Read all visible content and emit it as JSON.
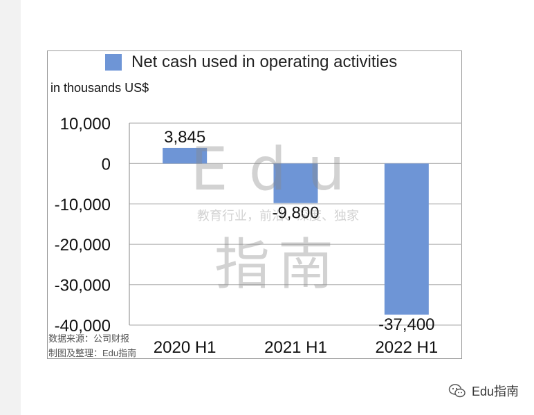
{
  "chart_data": {
    "type": "bar",
    "categories": [
      "2020 H1",
      "2021 H1",
      "2022 H1"
    ],
    "series": [
      {
        "name": "Net cash used in operating activities",
        "values": [
          3845,
          -9800,
          -37400
        ]
      }
    ],
    "data_labels": [
      "3,845",
      "-9,800",
      "-37,400"
    ],
    "ylabel": "in thousands US$",
    "yticks": [
      "10,000",
      "0",
      "-10,000",
      "-20,000",
      "-30,000",
      "-40,000"
    ],
    "ylim": [
      -40000,
      10000
    ],
    "grid": true,
    "legend_position": "top",
    "bar_color": "#6e95d6"
  },
  "watermark": {
    "brand": "Edu",
    "brand_cn": "指南",
    "tagline": "教育行业，前沿、深度、独家"
  },
  "source_lines": [
    "数据来源：公司财报",
    "制图及整理：Edu指南"
  ],
  "footer": {
    "label": "Edu指南",
    "icon": "wechat-icon"
  }
}
